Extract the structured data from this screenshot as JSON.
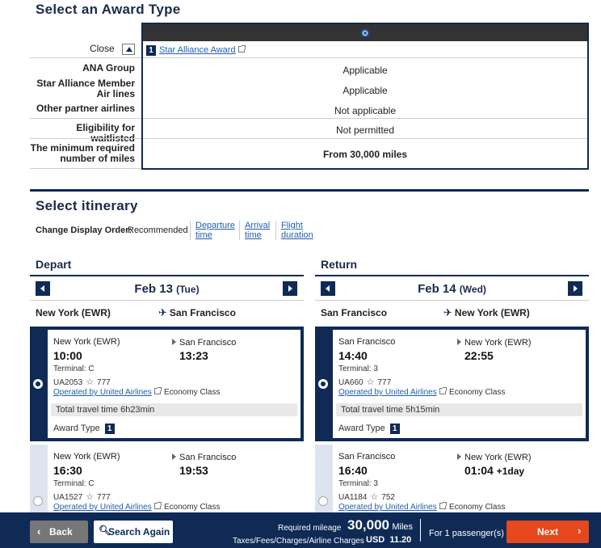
{
  "award": {
    "section_title": "Select an Award Type",
    "close_label": "Close",
    "option_number": "1",
    "option_label": "Star Alliance Award",
    "rows": [
      {
        "label": "ANA Group",
        "value": "Applicable"
      },
      {
        "label": "Star Alliance Member Air lines",
        "value": "Applicable"
      },
      {
        "label": "Other partner airlines",
        "value": "Not applicable"
      },
      {
        "label": "Eligibility for waitlisted",
        "value": "Not permitted"
      },
      {
        "label": "The minimum required number of miles",
        "value": "From 30,000 miles"
      }
    ]
  },
  "itinerary": {
    "section_title": "Select itinerary",
    "order_label": "Change Display Order:",
    "order_current": "Recommended",
    "order_links": [
      "Departure time",
      "Arrival time",
      "Flight duration"
    ]
  },
  "depart": {
    "title": "Depart",
    "date": "Feb 13",
    "weekday": "(Tue)",
    "from": "New York (EWR)",
    "to": "San Francisco",
    "flights": [
      {
        "from": "New York (EWR)",
        "to": "San Francisco",
        "dep": "10:00",
        "arr": "13:23",
        "arr_extra": "",
        "terminal": "Terminal: C",
        "flight": "UA2053",
        "aircraft": "777",
        "operator": "Operated by United Airlines",
        "cabin": "Economy Class",
        "travel_time": "Total travel time 6h23min",
        "award_type_label": "Award Type",
        "award_num": "1"
      },
      {
        "from": "New York (EWR)",
        "to": "San Francisco",
        "dep": "16:30",
        "arr": "19:53",
        "arr_extra": "",
        "terminal": "Terminal: C",
        "flight": "UA1527",
        "aircraft": "777",
        "operator": "Operated by United Airlines",
        "cabin": "Economy Class"
      }
    ]
  },
  "return": {
    "title": "Return",
    "date": "Feb 14",
    "weekday": "(Wed)",
    "from": "San Francisco",
    "to": "New York (EWR)",
    "flights": [
      {
        "from": "San Francisco",
        "to": "New York (EWR)",
        "dep": "14:40",
        "arr": "22:55",
        "arr_extra": "",
        "terminal": "Terminal: 3",
        "flight": "UA660",
        "aircraft": "777",
        "operator": "Operated by United Airlines",
        "cabin": "Economy Class",
        "travel_time": "Total travel time 5h15min",
        "award_type_label": "Award Type",
        "award_num": "1"
      },
      {
        "from": "San Francisco",
        "to": "New York (EWR)",
        "dep": "16:40",
        "arr": "01:04",
        "arr_extra": "+1day",
        "terminal": "Terminal: 3",
        "flight": "UA1184",
        "aircraft": "752",
        "operator": "Operated by United Airlines",
        "cabin": "Economy Class"
      }
    ]
  },
  "footer": {
    "back_label": "Back",
    "search_label": "Search Again",
    "required_label": "Required mileage",
    "miles_value": "30,000",
    "miles_unit": "Miles",
    "tax_label": "Taxes/Fees/Charges/Airline Charges",
    "tax_value": "USD  11.20",
    "passenger_label": "For 1 passenger(s)",
    "next_label": "Next"
  },
  "colors": {
    "navy": "#0e2a55",
    "link": "#1f5fae",
    "next": "#e6471c",
    "back": "#777777"
  }
}
